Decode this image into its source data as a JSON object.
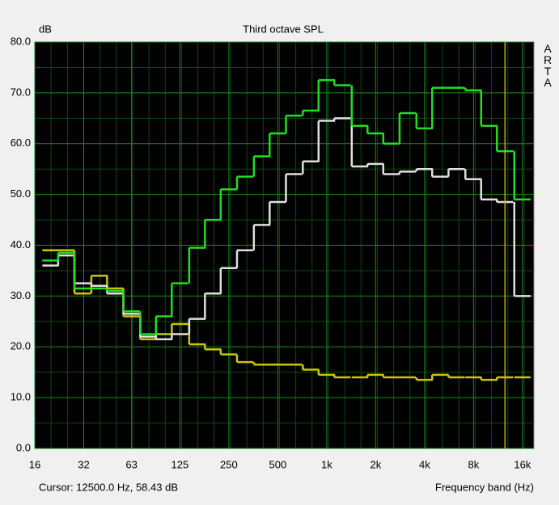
{
  "chart_data": {
    "type": "step",
    "title": "Third octave SPL",
    "y_label": "dB",
    "x_label": "Frequency band (Hz)",
    "watermark": "ARTA",
    "cursor": {
      "value": 12500,
      "label": "Cursor: 12500.0 Hz, 58.43 dB",
      "color": "#c8b400"
    },
    "log_x": true,
    "grid": true,
    "xlim": [
      16,
      18820
    ],
    "xticks": [
      16,
      32,
      63,
      125,
      250,
      500,
      {
        "value": 1000,
        "label": "1k"
      },
      {
        "value": 2000,
        "label": "2k"
      },
      {
        "value": 4000,
        "label": "4k"
      },
      {
        "value": 8000,
        "label": "8k"
      },
      {
        "value": 16000,
        "label": "16k"
      }
    ],
    "ylim": [
      0,
      80
    ],
    "yticks": [
      {
        "value": 0,
        "label": "0.0"
      },
      {
        "value": 10,
        "label": "10.0"
      },
      {
        "value": 20,
        "label": "20.0"
      },
      {
        "value": 30,
        "label": "30.0"
      },
      {
        "value": 40,
        "label": "40.0"
      },
      {
        "value": 50,
        "label": "50.0"
      },
      {
        "value": 60,
        "label": "60.0"
      },
      {
        "value": 70,
        "label": "70.0"
      },
      {
        "value": 80,
        "label": "80.0"
      }
    ],
    "x": [
      20,
      25,
      31.5,
      40,
      50,
      63,
      80,
      100,
      125,
      160,
      200,
      250,
      315,
      400,
      500,
      630,
      800,
      1000,
      1250,
      1600,
      2000,
      2500,
      3150,
      4000,
      5000,
      6300,
      8000,
      10000,
      12500,
      16000
    ],
    "series": [
      {
        "color": "#c8c800",
        "values": [
          39,
          39,
          30.5,
          34,
          31.5,
          26,
          21.5,
          22.5,
          24.5,
          20.5,
          19.5,
          18.5,
          17,
          16.5,
          16.5,
          16.5,
          15.5,
          14.5,
          14,
          14,
          14.5,
          14,
          14,
          13.5,
          14.5,
          14,
          14,
          13.5,
          14,
          14
        ]
      },
      {
        "color": "#e0e0e0",
        "values": [
          36,
          38,
          32.5,
          32,
          30.5,
          26.5,
          22,
          21.5,
          22.5,
          25.5,
          30.5,
          35.5,
          39,
          44,
          48.5,
          54,
          56.5,
          64.5,
          65,
          55.5,
          56,
          54,
          54.5,
          55,
          53.5,
          55,
          53,
          49,
          48.5,
          30
        ]
      },
      {
        "color": "#22dd22",
        "values": [
          37,
          38.5,
          31.5,
          31.5,
          31,
          27,
          22.5,
          26,
          32.5,
          39.5,
          45,
          51,
          53.5,
          57.5,
          62,
          65.5,
          66.5,
          72.5,
          71.5,
          63.5,
          62,
          60,
          66,
          63,
          71,
          71,
          70.5,
          63.5,
          58.5,
          49
        ]
      }
    ]
  }
}
